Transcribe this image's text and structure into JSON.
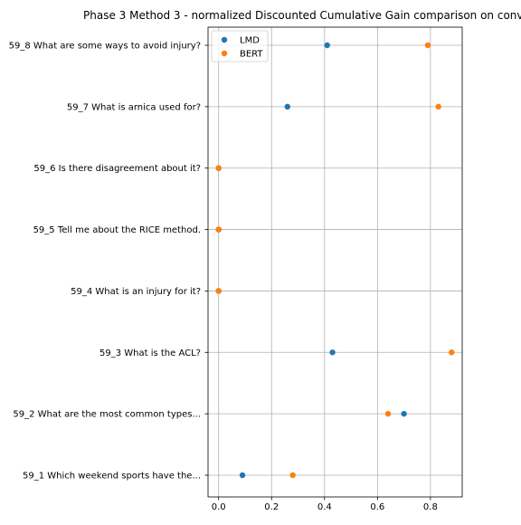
{
  "chart_data": {
    "type": "scatter",
    "title": "Phase 3 Method 3 - normalized Discounted Cumulative Gain comparison on conv",
    "xlabel": "",
    "ylabel": "",
    "xlim": [
      -0.04,
      0.92
    ],
    "xticks": [
      0.0,
      0.2,
      0.4,
      0.6,
      0.8
    ],
    "xtick_labels": [
      "0.0",
      "0.2",
      "0.4",
      "0.6",
      "0.8"
    ],
    "categories": [
      "59_8 What are some ways to avoid injury?",
      "59_7 What is arnica used for?",
      "59_6 Is there disagreement about it?",
      "59_5 Tell me about the RICE method.",
      "59_4 What is an injury for it?",
      "59_3 What is the ACL?",
      "59_2 What are the most common types...",
      "59_1 Which weekend sports have the..."
    ],
    "series": [
      {
        "name": "LMD",
        "color": "#1f77b4",
        "values": [
          0.41,
          0.26,
          0.0,
          0.0,
          0.0,
          0.43,
          0.7,
          0.09
        ]
      },
      {
        "name": "BERT",
        "color": "#ff7f0e",
        "values": [
          0.79,
          0.83,
          0.0,
          0.0,
          0.0,
          0.88,
          0.64,
          0.28
        ]
      }
    ],
    "grid": true,
    "legend_position": "upper-left"
  }
}
